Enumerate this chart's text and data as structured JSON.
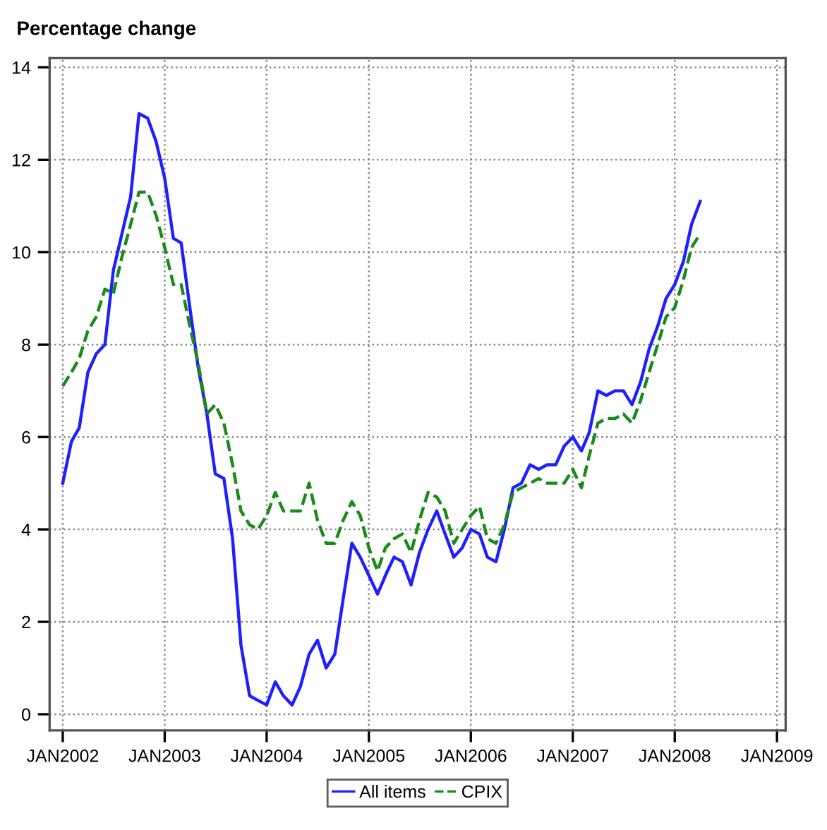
{
  "chart_data": {
    "type": "line",
    "title": "Percentage change",
    "x": [
      "2002-01",
      "2002-02",
      "2002-03",
      "2002-04",
      "2002-05",
      "2002-06",
      "2002-07",
      "2002-08",
      "2002-09",
      "2002-10",
      "2002-11",
      "2002-12",
      "2003-01",
      "2003-02",
      "2003-03",
      "2003-04",
      "2003-05",
      "2003-06",
      "2003-07",
      "2003-08",
      "2003-09",
      "2003-10",
      "2003-11",
      "2003-12",
      "2004-01",
      "2004-02",
      "2004-03",
      "2004-04",
      "2004-05",
      "2004-06",
      "2004-07",
      "2004-08",
      "2004-09",
      "2004-10",
      "2004-11",
      "2004-12",
      "2005-01",
      "2005-02",
      "2005-03",
      "2005-04",
      "2005-05",
      "2005-06",
      "2005-07",
      "2005-08",
      "2005-09",
      "2005-10",
      "2005-11",
      "2005-12",
      "2006-01",
      "2006-02",
      "2006-03",
      "2006-04",
      "2006-05",
      "2006-06",
      "2006-07",
      "2006-08",
      "2006-09",
      "2006-10",
      "2006-11",
      "2006-12",
      "2007-01",
      "2007-02",
      "2007-03",
      "2007-04",
      "2007-05",
      "2007-06",
      "2007-07",
      "2007-08",
      "2007-09",
      "2007-10",
      "2007-11",
      "2007-12",
      "2008-01",
      "2008-02",
      "2008-03",
      "2008-04"
    ],
    "series": [
      {
        "name": "All items",
        "color": "#1f1fff",
        "line_style": "solid",
        "values": [
          5.0,
          5.9,
          6.2,
          7.4,
          7.8,
          8.0,
          9.6,
          10.4,
          11.2,
          13.0,
          12.9,
          12.4,
          11.6,
          10.3,
          10.2,
          8.8,
          7.5,
          6.5,
          5.2,
          5.1,
          3.8,
          1.5,
          0.4,
          0.3,
          0.2,
          0.7,
          0.4,
          0.2,
          0.6,
          1.3,
          1.6,
          1.0,
          1.3,
          2.5,
          3.7,
          3.4,
          3.0,
          2.6,
          3.0,
          3.4,
          3.3,
          2.8,
          3.5,
          4.0,
          4.4,
          3.9,
          3.4,
          3.6,
          4.0,
          3.9,
          3.4,
          3.3,
          4.0,
          4.9,
          5.0,
          5.4,
          5.3,
          5.4,
          5.4,
          5.8,
          6.0,
          5.7,
          6.1,
          7.0,
          6.9,
          7.0,
          7.0,
          6.7,
          7.2,
          7.9,
          8.4,
          9.0,
          9.3,
          9.8,
          10.6,
          11.1
        ]
      },
      {
        "name": "CPIX",
        "color": "#1a8a1a",
        "line_style": "dashed",
        "values": [
          7.1,
          7.4,
          7.7,
          8.3,
          8.6,
          9.2,
          9.1,
          9.9,
          10.6,
          11.3,
          11.3,
          10.8,
          10.1,
          9.3,
          9.3,
          8.4,
          7.6,
          6.5,
          6.7,
          6.3,
          5.4,
          4.4,
          4.1,
          4.0,
          4.3,
          4.8,
          4.4,
          4.4,
          4.4,
          5.0,
          4.2,
          3.7,
          3.7,
          4.2,
          4.6,
          4.3,
          3.6,
          3.1,
          3.6,
          3.8,
          3.9,
          3.5,
          4.2,
          4.8,
          4.7,
          4.4,
          3.7,
          4.0,
          4.3,
          4.5,
          3.8,
          3.7,
          4.1,
          4.8,
          4.9,
          5.0,
          5.1,
          5.0,
          5.0,
          5.0,
          5.3,
          4.9,
          5.6,
          6.3,
          6.4,
          6.4,
          6.5,
          6.3,
          6.8,
          7.4,
          8.0,
          8.6,
          8.8,
          9.4,
          10.1,
          10.4
        ]
      }
    ],
    "xlim": [
      "2001-11-15",
      "2009-02-01"
    ],
    "xticks": [
      {
        "value": "2002-01",
        "label": "JAN2002"
      },
      {
        "value": "2003-01",
        "label": "JAN2003"
      },
      {
        "value": "2004-01",
        "label": "JAN2004"
      },
      {
        "value": "2005-01",
        "label": "JAN2005"
      },
      {
        "value": "2006-01",
        "label": "JAN2006"
      },
      {
        "value": "2007-01",
        "label": "JAN2007"
      },
      {
        "value": "2008-01",
        "label": "JAN2008"
      },
      {
        "value": "2009-01",
        "label": "JAN2009"
      }
    ],
    "ylim": [
      -0.35,
      14.2
    ],
    "yticks": [
      0,
      2,
      4,
      6,
      8,
      10,
      12,
      14
    ],
    "grid": true,
    "legend": "bottom"
  }
}
